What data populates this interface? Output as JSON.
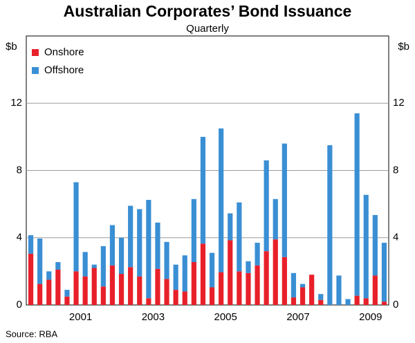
{
  "chart_data": {
    "type": "stacked_bar",
    "title": "Australian Corporates’ Bond Issuance",
    "subtitle": "Quarterly",
    "y_unit_left": "$b",
    "y_unit_right": "$b",
    "source": "Source: RBA",
    "categories": [
      null,
      null,
      null,
      null,
      "2001",
      null,
      null,
      null,
      null,
      null,
      null,
      null,
      "2003",
      null,
      null,
      null,
      null,
      null,
      null,
      null,
      "2005",
      null,
      null,
      null,
      null,
      null,
      null,
      null,
      "2007",
      null,
      null,
      null,
      null,
      null,
      null,
      null,
      "2009",
      null,
      null,
      null
    ],
    "series": [
      {
        "name": "Onshore",
        "color": "#e8202a",
        "values": [
          3.05,
          1.25,
          1.5,
          2.1,
          0.5,
          2.0,
          1.7,
          2.2,
          1.1,
          2.35,
          1.85,
          2.25,
          1.7,
          0.4,
          2.15,
          1.55,
          0.9,
          0.8,
          2.55,
          3.65,
          1.05,
          1.95,
          3.85,
          2.0,
          1.9,
          2.35,
          3.2,
          3.9,
          2.85,
          0.45,
          1.05,
          1.8,
          0.3,
          0,
          0,
          0,
          0.55,
          0.4,
          1.75,
          0.2
        ]
      },
      {
        "name": "Offshore",
        "color": "#3a8fd4",
        "values": [
          1.1,
          2.7,
          0.5,
          0.45,
          0.4,
          5.3,
          1.45,
          0.2,
          2.4,
          2.4,
          2.15,
          3.65,
          4.0,
          5.85,
          2.75,
          2.2,
          1.5,
          2.15,
          3.75,
          6.35,
          2.05,
          8.55,
          1.6,
          4.1,
          0.7,
          1.35,
          5.4,
          2.4,
          6.75,
          1.45,
          0.2,
          0,
          0.35,
          9.5,
          1.75,
          0.35,
          10.85,
          6.15,
          3.6,
          3.5
        ]
      }
    ],
    "ylim": [
      0,
      16
    ],
    "yticks": [
      0,
      4,
      8,
      12
    ],
    "grid": true,
    "legend": "top-left"
  }
}
